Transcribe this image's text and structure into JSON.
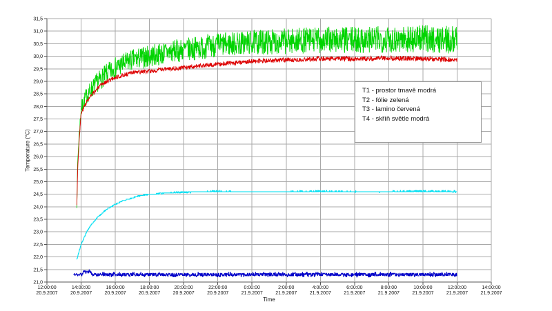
{
  "chart_data": {
    "type": "line",
    "title": "",
    "xlabel": "Time",
    "ylabel": "Temperature (°C)",
    "ylim": [
      21.0,
      31.5
    ],
    "ytick_step": 0.5,
    "y_decimal_separator": ",",
    "xlim_hours": [
      0,
      26
    ],
    "grid": true,
    "grid_color": "#a8a8a8",
    "axis_color": "#555555",
    "tick_label_color": "#111111",
    "x_ticks": [
      {
        "hour": 0,
        "time": "12:00:00",
        "date": "20.9.2007"
      },
      {
        "hour": 2,
        "time": "14:00:00",
        "date": "20.9.2007"
      },
      {
        "hour": 4,
        "time": "16:00:00",
        "date": "20.9.2007"
      },
      {
        "hour": 6,
        "time": "18:00:00",
        "date": "20.9.2007"
      },
      {
        "hour": 8,
        "time": "20:00:00",
        "date": "20.9.2007"
      },
      {
        "hour": 10,
        "time": "22:00:00",
        "date": "20.9.2007"
      },
      {
        "hour": 12,
        "time": "0:00:00",
        "date": "21.9.2007"
      },
      {
        "hour": 14,
        "time": "2:00:00",
        "date": "21.9.2007"
      },
      {
        "hour": 16,
        "time": "4:00:00",
        "date": "21.9.2007"
      },
      {
        "hour": 18,
        "time": "6:00:00",
        "date": "21.9.2007"
      },
      {
        "hour": 20,
        "time": "8:00:00",
        "date": "21.9.2007"
      },
      {
        "hour": 22,
        "time": "10:00:00",
        "date": "21.9.2007"
      },
      {
        "hour": 24,
        "time": "12:00:00",
        "date": "21.9.2007"
      },
      {
        "hour": 26,
        "time": "14:00:00",
        "date": "21.9.2007"
      }
    ],
    "legend": {
      "position": "top-right-inside"
    },
    "series": [
      {
        "name": "T1 - prostor tmavě modrá",
        "color": "#0000c8",
        "width": 1.1,
        "seed": 11,
        "quantize": 0.05,
        "noise": [
          [
            1.55,
            0.04
          ],
          [
            3.0,
            0.08
          ],
          [
            24,
            0.08
          ]
        ],
        "points": [
          [
            1.55,
            21.3
          ],
          [
            2.08,
            21.3
          ],
          [
            2.12,
            21.42
          ],
          [
            2.58,
            21.42
          ],
          [
            2.62,
            21.3
          ],
          [
            10,
            21.3
          ],
          [
            16,
            21.3
          ],
          [
            24,
            21.3
          ]
        ]
      },
      {
        "name": "T2 - fólie zelená",
        "color": "#00d400",
        "width": 0.9,
        "seed": 7,
        "noise": [
          [
            1.75,
            0.05
          ],
          [
            2.0,
            0.3
          ],
          [
            3,
            0.4
          ],
          [
            6,
            0.45
          ],
          [
            12,
            0.5
          ],
          [
            20,
            0.55
          ],
          [
            24,
            0.55
          ]
        ],
        "points": [
          [
            1.75,
            24.0
          ],
          [
            1.8,
            25.8
          ],
          [
            1.9,
            27.0
          ],
          [
            2.0,
            27.9
          ],
          [
            2.25,
            28.35
          ],
          [
            2.5,
            28.6
          ],
          [
            3,
            29.0
          ],
          [
            3.5,
            29.3
          ],
          [
            4,
            29.55
          ],
          [
            4.5,
            29.7
          ],
          [
            5,
            29.85
          ],
          [
            6,
            30.0
          ],
          [
            7,
            30.15
          ],
          [
            8,
            30.25
          ],
          [
            9,
            30.35
          ],
          [
            10,
            30.45
          ],
          [
            11,
            30.5
          ],
          [
            12,
            30.55
          ],
          [
            14,
            30.6
          ],
          [
            16,
            30.65
          ],
          [
            18,
            30.65
          ],
          [
            20,
            30.68
          ],
          [
            22,
            30.7
          ],
          [
            24,
            30.65
          ]
        ]
      },
      {
        "name": "T3 - lamino červená",
        "color": "#dd0000",
        "width": 0.9,
        "seed": 3,
        "noise": [
          [
            1.75,
            0.03
          ],
          [
            2.0,
            0.08
          ],
          [
            6,
            0.09
          ],
          [
            24,
            0.1
          ]
        ],
        "points": [
          [
            1.75,
            24.05
          ],
          [
            1.8,
            25.5
          ],
          [
            1.9,
            26.8
          ],
          [
            2.0,
            27.7
          ],
          [
            2.25,
            28.1
          ],
          [
            2.5,
            28.35
          ],
          [
            3,
            28.75
          ],
          [
            3.5,
            29.0
          ],
          [
            4,
            29.15
          ],
          [
            4.5,
            29.25
          ],
          [
            5,
            29.35
          ],
          [
            6,
            29.4
          ],
          [
            7,
            29.5
          ],
          [
            8,
            29.55
          ],
          [
            9,
            29.62
          ],
          [
            10,
            29.68
          ],
          [
            12,
            29.8
          ],
          [
            14,
            29.85
          ],
          [
            16,
            29.9
          ],
          [
            18,
            29.9
          ],
          [
            20,
            29.92
          ],
          [
            22,
            29.9
          ],
          [
            24,
            29.85
          ]
        ]
      },
      {
        "name": "T4 - skříň světle modrá",
        "color": "#00dff2",
        "width": 1.1,
        "seed": 5,
        "quantize": 0.05,
        "noise": [
          [
            1.75,
            0.01
          ],
          [
            6,
            0.02
          ],
          [
            24,
            0.03
          ]
        ],
        "points": [
          [
            1.75,
            21.9
          ],
          [
            2.0,
            22.5
          ],
          [
            2.33,
            23.0
          ],
          [
            2.67,
            23.35
          ],
          [
            3.0,
            23.6
          ],
          [
            3.5,
            23.9
          ],
          [
            4.0,
            24.1
          ],
          [
            4.5,
            24.25
          ],
          [
            5,
            24.35
          ],
          [
            5.5,
            24.45
          ],
          [
            6,
            24.5
          ],
          [
            6.5,
            24.52
          ],
          [
            7,
            24.55
          ],
          [
            8,
            24.58
          ],
          [
            9,
            24.6
          ],
          [
            10,
            24.62
          ],
          [
            11,
            24.6
          ],
          [
            12,
            24.6
          ],
          [
            14,
            24.6
          ],
          [
            16,
            24.62
          ],
          [
            18,
            24.6
          ],
          [
            20,
            24.6
          ],
          [
            22,
            24.62
          ],
          [
            24,
            24.6
          ]
        ]
      }
    ]
  }
}
